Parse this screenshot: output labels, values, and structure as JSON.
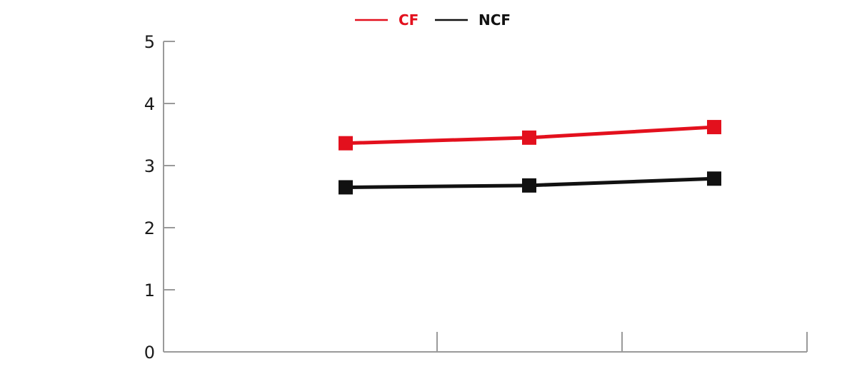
{
  "chart_data": {
    "type": "line",
    "title": "",
    "xlabel": "",
    "ylabel": "",
    "categories": [
      "",
      "",
      ""
    ],
    "ylim": [
      0,
      5
    ],
    "yticks": [
      "0",
      "1",
      "2",
      "3",
      "4",
      "5"
    ],
    "grid": false,
    "legend_position": "top-center",
    "series": [
      {
        "name": "CF",
        "color": "#e3101d",
        "values": [
          3.36,
          3.45,
          3.62
        ]
      },
      {
        "name": "NCF",
        "color": "#111111",
        "values": [
          2.65,
          2.68,
          2.79
        ]
      }
    ]
  }
}
